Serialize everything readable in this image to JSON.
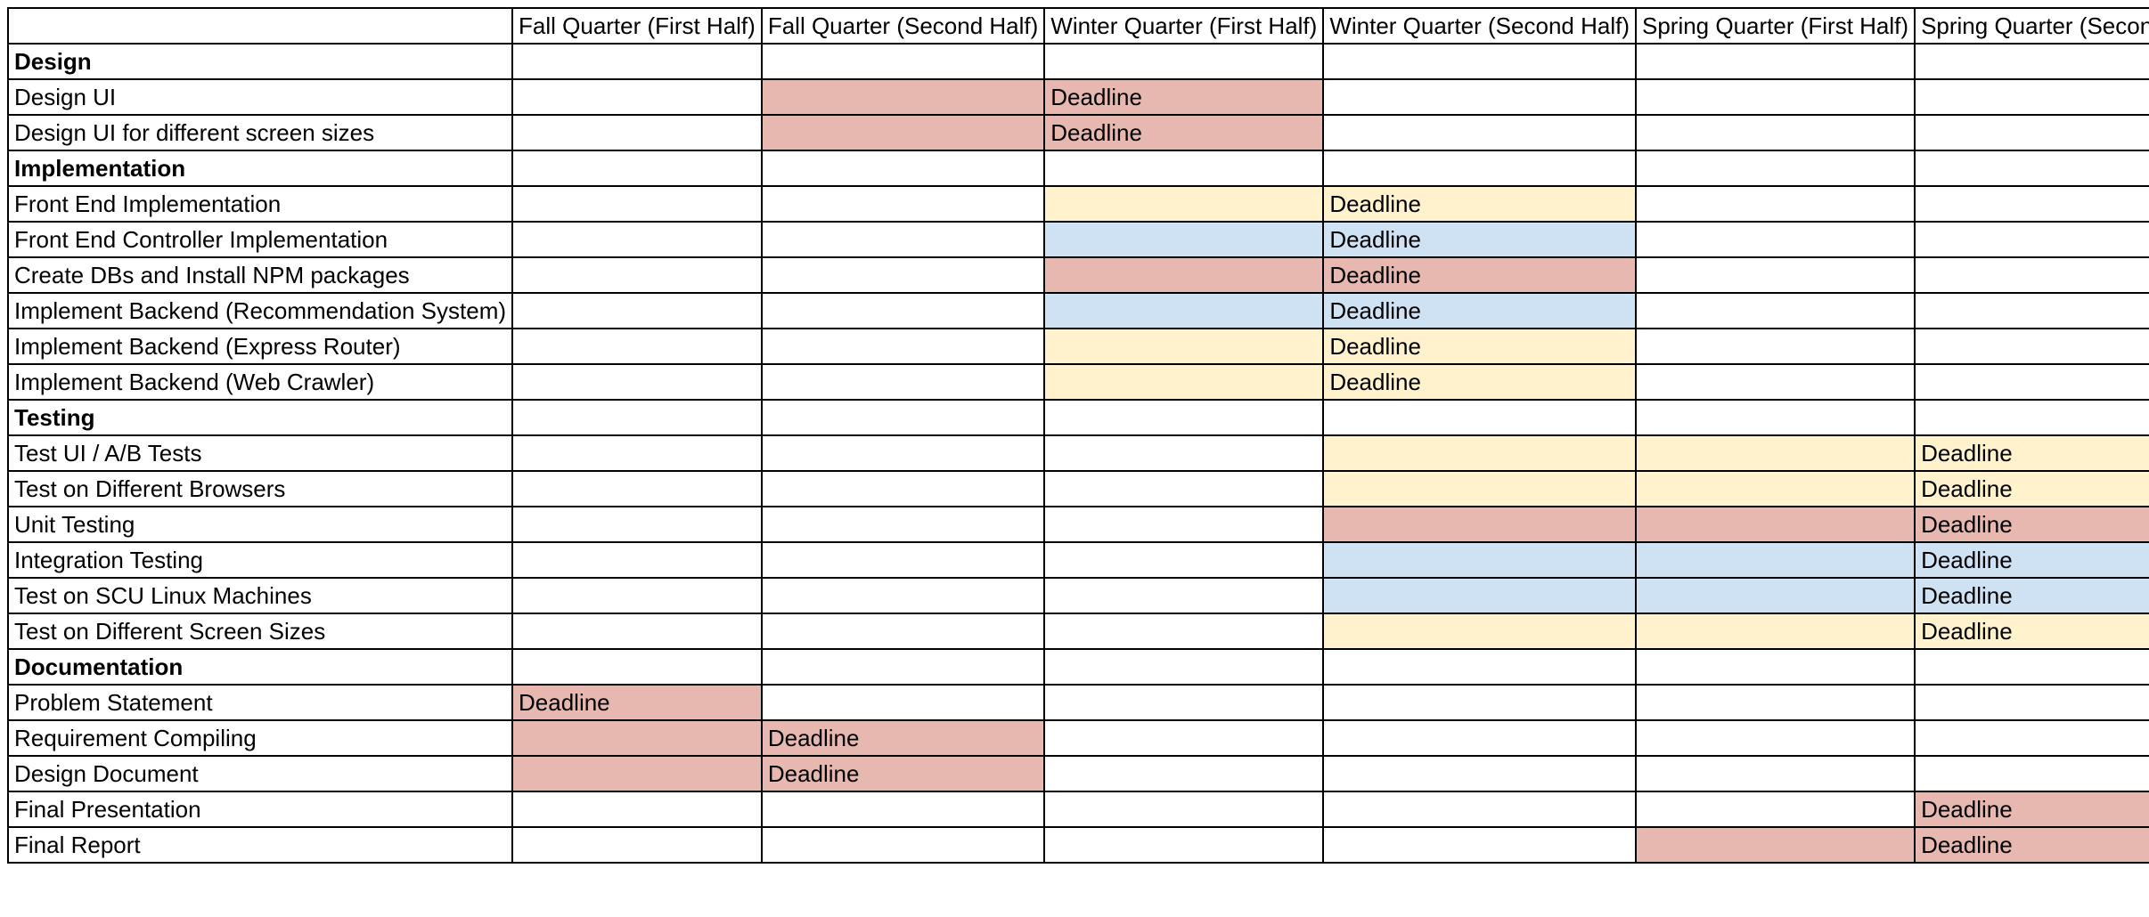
{
  "colors": {
    "red": "#e6b8af",
    "yellow": "#fff2cc",
    "blue": "#cfe2f3",
    "grid": "#000000"
  },
  "columns": [
    "",
    "Fall Quarter (First Half)",
    "Fall Quarter (Second Half)",
    "Winter Quarter (First Half)",
    "Winter Quarter (Second Half)",
    "Spring Quarter (First Half)",
    "Spring Quarter (Second Half)"
  ],
  "rows": [
    {
      "label": "Design",
      "section": true,
      "cells": [
        "",
        "",
        "",
        "",
        "",
        ""
      ],
      "colors": [
        "",
        "",
        "",
        "",
        "",
        ""
      ]
    },
    {
      "label": "Design UI",
      "section": false,
      "cells": [
        "",
        "",
        "Deadline",
        "",
        "",
        ""
      ],
      "colors": [
        "",
        "red",
        "red",
        "",
        "",
        ""
      ]
    },
    {
      "label": "Design UI for different screen sizes",
      "section": false,
      "cells": [
        "",
        "",
        "Deadline",
        "",
        "",
        ""
      ],
      "colors": [
        "",
        "red",
        "red",
        "",
        "",
        ""
      ]
    },
    {
      "label": "Implementation",
      "section": true,
      "cells": [
        "",
        "",
        "",
        "",
        "",
        ""
      ],
      "colors": [
        "",
        "",
        "",
        "",
        "",
        ""
      ]
    },
    {
      "label": "Front End Implementation",
      "section": false,
      "cells": [
        "",
        "",
        "",
        "Deadline",
        "",
        ""
      ],
      "colors": [
        "",
        "",
        "yellow",
        "yellow",
        "",
        ""
      ]
    },
    {
      "label": "Front End Controller Implementation",
      "section": false,
      "cells": [
        "",
        "",
        "",
        "Deadline",
        "",
        ""
      ],
      "colors": [
        "",
        "",
        "blue",
        "blue",
        "",
        ""
      ]
    },
    {
      "label": "Create DBs and Install NPM packages",
      "section": false,
      "cells": [
        "",
        "",
        "",
        "Deadline",
        "",
        ""
      ],
      "colors": [
        "",
        "",
        "red",
        "red",
        "",
        ""
      ]
    },
    {
      "label": "Implement Backend (Recommendation System)",
      "section": false,
      "cells": [
        "",
        "",
        "",
        "Deadline",
        "",
        ""
      ],
      "colors": [
        "",
        "",
        "blue",
        "blue",
        "",
        ""
      ]
    },
    {
      "label": "Implement Backend (Express Router)",
      "section": false,
      "cells": [
        "",
        "",
        "",
        "Deadline",
        "",
        ""
      ],
      "colors": [
        "",
        "",
        "yellow",
        "yellow",
        "",
        ""
      ]
    },
    {
      "label": "Implement Backend (Web Crawler)",
      "section": false,
      "cells": [
        "",
        "",
        "",
        "Deadline",
        "",
        ""
      ],
      "colors": [
        "",
        "",
        "yellow",
        "yellow",
        "",
        ""
      ]
    },
    {
      "label": "Testing",
      "section": true,
      "cells": [
        "",
        "",
        "",
        "",
        "",
        ""
      ],
      "colors": [
        "",
        "",
        "",
        "",
        "",
        ""
      ]
    },
    {
      "label": "Test UI / A/B Tests",
      "section": false,
      "cells": [
        "",
        "",
        "",
        "",
        "",
        "Deadline"
      ],
      "colors": [
        "",
        "",
        "",
        "yellow",
        "yellow",
        "yellow"
      ]
    },
    {
      "label": "Test on Different Browsers",
      "section": false,
      "cells": [
        "",
        "",
        "",
        "",
        "",
        "Deadline"
      ],
      "colors": [
        "",
        "",
        "",
        "yellow",
        "yellow",
        "yellow"
      ]
    },
    {
      "label": "Unit Testing",
      "section": false,
      "cells": [
        "",
        "",
        "",
        "",
        "",
        "Deadline"
      ],
      "colors": [
        "",
        "",
        "",
        "red",
        "red",
        "red"
      ]
    },
    {
      "label": "Integration Testing",
      "section": false,
      "cells": [
        "",
        "",
        "",
        "",
        "",
        "Deadline"
      ],
      "colors": [
        "",
        "",
        "",
        "blue",
        "blue",
        "blue"
      ]
    },
    {
      "label": "Test on SCU Linux Machines",
      "section": false,
      "cells": [
        "",
        "",
        "",
        "",
        "",
        "Deadline"
      ],
      "colors": [
        "",
        "",
        "",
        "blue",
        "blue",
        "blue"
      ]
    },
    {
      "label": "Test on Different Screen Sizes",
      "section": false,
      "cells": [
        "",
        "",
        "",
        "",
        "",
        "Deadline"
      ],
      "colors": [
        "",
        "",
        "",
        "yellow",
        "yellow",
        "yellow"
      ]
    },
    {
      "label": "Documentation",
      "section": true,
      "cells": [
        "",
        "",
        "",
        "",
        "",
        ""
      ],
      "colors": [
        "",
        "",
        "",
        "",
        "",
        ""
      ]
    },
    {
      "label": "Problem Statement",
      "section": false,
      "cells": [
        "Deadline",
        "",
        "",
        "",
        "",
        ""
      ],
      "colors": [
        "red",
        "",
        "",
        "",
        "",
        ""
      ]
    },
    {
      "label": "Requirement Compiling",
      "section": false,
      "cells": [
        "",
        "Deadline",
        "",
        "",
        "",
        ""
      ],
      "colors": [
        "red",
        "red",
        "",
        "",
        "",
        ""
      ]
    },
    {
      "label": "Design Document",
      "section": false,
      "cells": [
        "",
        "Deadline",
        "",
        "",
        "",
        ""
      ],
      "colors": [
        "red",
        "red",
        "",
        "",
        "",
        ""
      ]
    },
    {
      "label": "Final Presentation",
      "section": false,
      "cells": [
        "",
        "",
        "",
        "",
        "",
        "Deadline"
      ],
      "colors": [
        "",
        "",
        "",
        "",
        "",
        "red"
      ]
    },
    {
      "label": "Final Report",
      "section": false,
      "cells": [
        "",
        "",
        "",
        "",
        "",
        "Deadline"
      ],
      "colors": [
        "",
        "",
        "",
        "",
        "red",
        "red"
      ]
    }
  ]
}
